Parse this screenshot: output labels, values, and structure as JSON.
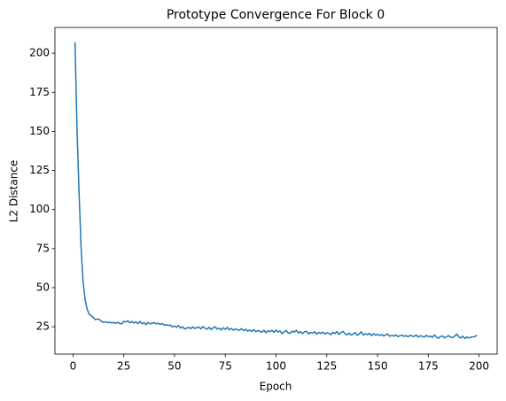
{
  "chart_data": {
    "type": "line",
    "title": "Prototype Convergence For Block 0",
    "x_label": "Epoch",
    "y_label": "L2 Distance",
    "x": [
      1,
      2,
      3,
      4,
      5,
      6,
      7,
      8,
      9,
      10,
      11,
      12,
      13,
      14,
      15,
      16,
      17,
      18,
      19,
      20,
      21,
      22,
      23,
      24,
      25,
      26,
      27,
      28,
      29,
      30,
      31,
      32,
      33,
      34,
      35,
      36,
      37,
      38,
      39,
      40,
      41,
      42,
      43,
      44,
      45,
      46,
      47,
      48,
      49,
      50,
      51,
      52,
      53,
      54,
      55,
      56,
      57,
      58,
      59,
      60,
      61,
      62,
      63,
      64,
      65,
      66,
      67,
      68,
      69,
      70,
      71,
      72,
      73,
      74,
      75,
      76,
      77,
      78,
      79,
      80,
      81,
      82,
      83,
      84,
      85,
      86,
      87,
      88,
      89,
      90,
      91,
      92,
      93,
      94,
      95,
      96,
      97,
      98,
      99,
      100,
      101,
      102,
      103,
      104,
      105,
      106,
      107,
      108,
      109,
      110,
      111,
      112,
      113,
      114,
      115,
      116,
      117,
      118,
      119,
      120,
      121,
      122,
      123,
      124,
      125,
      126,
      127,
      128,
      129,
      130,
      131,
      132,
      133,
      134,
      135,
      136,
      137,
      138,
      139,
      140,
      141,
      142,
      143,
      144,
      145,
      146,
      147,
      148,
      149,
      150,
      151,
      152,
      153,
      154,
      155,
      156,
      157,
      158,
      159,
      160,
      161,
      162,
      163,
      164,
      165,
      166,
      167,
      168,
      169,
      170,
      171,
      172,
      173,
      174,
      175,
      176,
      177,
      178,
      179,
      180,
      181,
      182,
      183,
      184,
      185,
      186,
      187,
      188,
      189,
      190,
      191,
      192,
      193,
      194,
      195,
      196,
      197,
      198,
      199
    ],
    "series": [
      {
        "name": "L2 Distance",
        "color": "#1f77b4",
        "values": [
          207,
          150,
          110,
          75,
          53,
          42,
          36,
          33,
          32,
          31,
          29.5,
          30,
          29.6,
          28.5,
          27.8,
          28.2,
          27.6,
          27.9,
          27.5,
          27.7,
          27.2,
          27.8,
          27.0,
          26.8,
          28.5,
          28.0,
          28.9,
          27.6,
          28.3,
          27.4,
          28.1,
          27.0,
          28.4,
          26.9,
          27.5,
          26.4,
          27.8,
          26.8,
          27.3,
          27.6,
          26.9,
          27.2,
          26.5,
          27.0,
          26.0,
          26.3,
          25.8,
          26.1,
          24.9,
          25.5,
          24.6,
          25.8,
          24.2,
          25.0,
          23.5,
          24.1,
          24.6,
          23.8,
          24.9,
          23.9,
          24.5,
          24.8,
          23.6,
          25.2,
          24.0,
          23.4,
          24.7,
          23.2,
          24.3,
          25.0,
          23.5,
          24.1,
          22.9,
          24.4,
          23.3,
          24.6,
          23.0,
          23.9,
          22.8,
          23.6,
          23.1,
          22.7,
          23.8,
          22.5,
          23.4,
          22.2,
          22.9,
          22.0,
          23.2,
          21.8,
          22.6,
          22.1,
          21.5,
          22.8,
          21.2,
          22.4,
          21.9,
          22.7,
          21.4,
          22.9,
          21.6,
          22.3,
          20.5,
          21.8,
          22.6,
          21.1,
          20.8,
          22.2,
          21.5,
          22.8,
          21.0,
          21.9,
          20.6,
          21.7,
          22.1,
          20.4,
          21.3,
          20.9,
          21.8,
          20.2,
          21.4,
          20.7,
          21.6,
          20.3,
          21.2,
          20.8,
          19.9,
          21.5,
          20.6,
          21.9,
          20.1,
          21.3,
          22.0,
          20.5,
          19.8,
          20.9,
          19.6,
          20.4,
          21.2,
          19.5,
          20.3,
          21.8,
          19.7,
          20.6,
          19.9,
          20.8,
          19.3,
          20.5,
          19.6,
          20.2,
          19.4,
          20.0,
          19.1,
          19.8,
          20.3,
          18.9,
          19.5,
          19.0,
          19.9,
          18.6,
          19.3,
          19.7,
          18.8,
          19.4,
          18.5,
          19.6,
          19.1,
          18.7,
          19.8,
          18.4,
          19.2,
          18.9,
          18.3,
          19.5,
          18.6,
          19.0,
          18.2,
          19.7,
          18.5,
          17.6,
          18.8,
          19.1,
          17.9,
          18.6,
          19.3,
          18.4,
          18.0,
          19.0,
          20.3,
          18.7,
          17.8,
          18.9,
          17.5,
          18.4,
          17.9,
          18.2,
          18.5,
          18.8,
          19.6
        ]
      }
    ],
    "xlim": [
      -8.9,
      208.9
    ],
    "xticks": [
      0,
      25,
      50,
      75,
      100,
      125,
      150,
      175,
      200
    ],
    "ylim": [
      7.5,
      216.5
    ],
    "yticks": [
      25,
      50,
      75,
      100,
      125,
      150,
      175,
      200
    ]
  }
}
